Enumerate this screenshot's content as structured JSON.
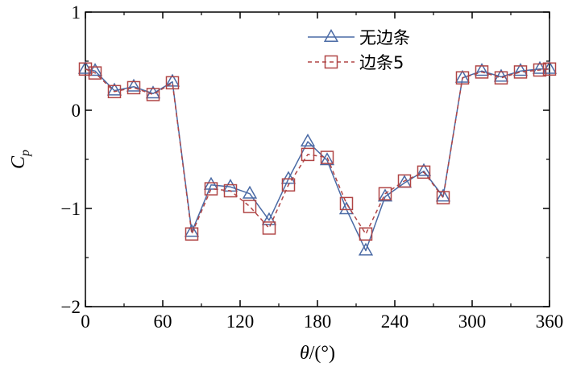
{
  "chart_data": {
    "type": "line",
    "xlabel_italic": "θ",
    "xlabel_rest": "/(°)",
    "ylabel_main": "C",
    "ylabel_sub": "p",
    "xlim": [
      0,
      360
    ],
    "ylim": [
      -2,
      1
    ],
    "xticks": [
      0,
      60,
      120,
      180,
      240,
      300,
      360
    ],
    "yticks": [
      1,
      0,
      -1,
      -2
    ],
    "legend_position": "top-right",
    "grid": false,
    "series": [
      {
        "name": "无边条",
        "color": "#4a6aa5",
        "marker": "triangle",
        "line_style": "solid",
        "x": [
          0,
          7.5,
          22.5,
          37.5,
          52.5,
          67.5,
          82.5,
          97.5,
          112.5,
          127.5,
          142.5,
          157.5,
          172.5,
          187.5,
          202.5,
          217.5,
          232.5,
          247.5,
          262.5,
          277.5,
          292.5,
          307.5,
          322.5,
          337.5,
          352.5,
          360
        ],
        "values": [
          0.42,
          0.4,
          0.2,
          0.24,
          0.17,
          0.29,
          -1.24,
          -0.76,
          -0.78,
          -0.85,
          -1.12,
          -0.7,
          -0.32,
          -0.51,
          -1.01,
          -1.43,
          -0.88,
          -0.74,
          -0.62,
          -0.88,
          0.33,
          0.4,
          0.34,
          0.4,
          0.42,
          0.42
        ]
      },
      {
        "name": "边条5",
        "color": "#b04545",
        "marker": "square",
        "line_style": "dashed",
        "x": [
          0,
          7.5,
          22.5,
          37.5,
          52.5,
          67.5,
          82.5,
          97.5,
          112.5,
          127.5,
          142.5,
          157.5,
          172.5,
          187.5,
          202.5,
          217.5,
          232.5,
          247.5,
          262.5,
          277.5,
          292.5,
          307.5,
          322.5,
          337.5,
          352.5,
          360
        ],
        "values": [
          0.42,
          0.38,
          0.19,
          0.23,
          0.16,
          0.28,
          -1.26,
          -0.8,
          -0.82,
          -0.98,
          -1.2,
          -0.76,
          -0.45,
          -0.48,
          -0.95,
          -1.26,
          -0.85,
          -0.72,
          -0.63,
          -0.89,
          0.33,
          0.39,
          0.33,
          0.39,
          0.41,
          0.42
        ]
      }
    ]
  }
}
